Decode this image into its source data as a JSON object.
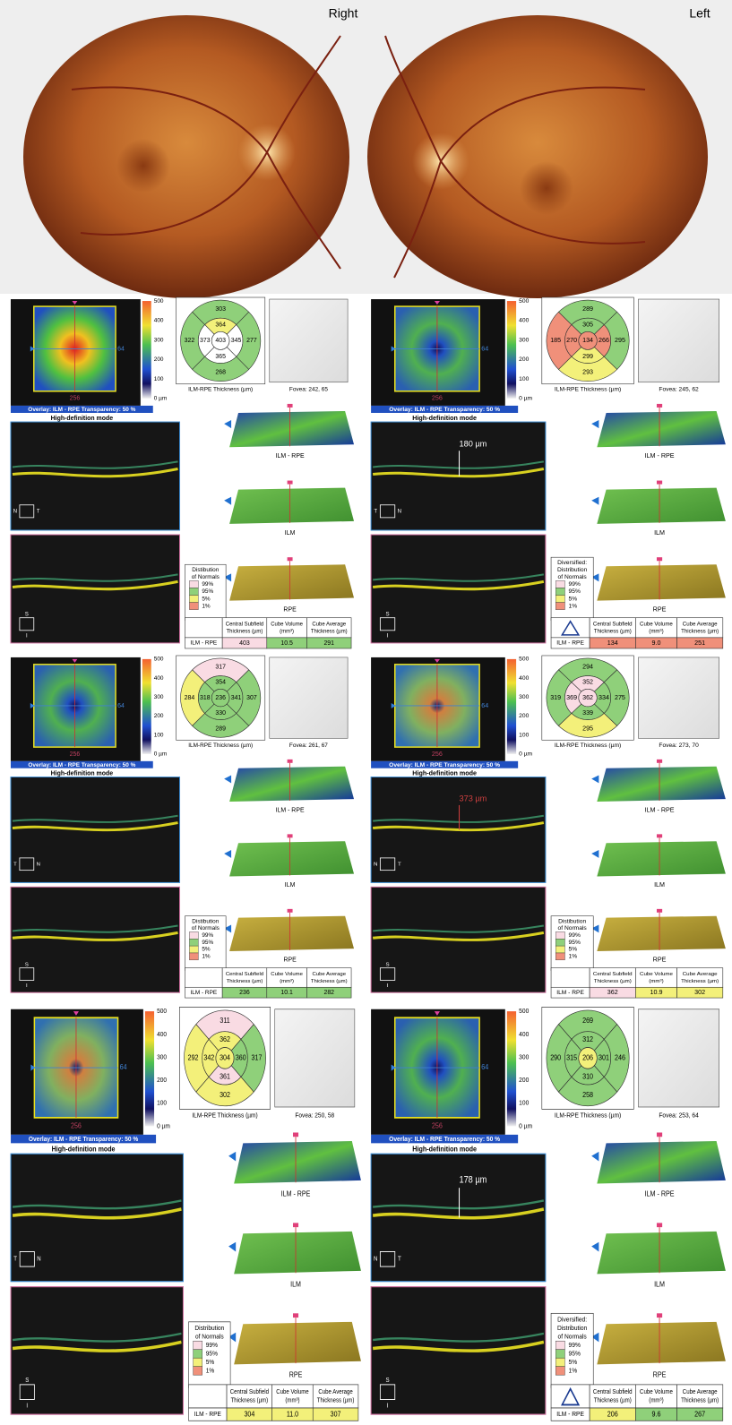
{
  "fundus": {
    "right_label": "Right",
    "left_label": "Left"
  },
  "labels": {
    "overlay": "Overlay: ILM - RPE  Transparency: 50 %",
    "hd_mode": "High-definition mode",
    "grid_caption": "ILM-RPE Thickness (µm)",
    "scale": [
      "500",
      "400",
      "300",
      "200",
      "100",
      "0 µm"
    ],
    "map_x": "64",
    "map_y": "256",
    "surface_1": "ILM - RPE",
    "surface_2": "ILM",
    "surface_3": "RPE",
    "legend_items": [
      "99%",
      "95%",
      "5%",
      "1%"
    ],
    "table_headers": [
      [
        "Central Subfield",
        "Thickness (µm)"
      ],
      [
        "Cube Volume",
        "(mm³)"
      ],
      [
        "Cube Average",
        "Thickness (µm)"
      ]
    ],
    "table_row": "ILM - RPE"
  },
  "panels": [
    {
      "grid": [
        "303",
        "364",
        "322",
        "373",
        "403",
        "345",
        "277",
        "365",
        "268"
      ],
      "grid_colors": [
        "#8fd07a",
        "#f3f07a",
        "#8fd07a",
        "#ffffff",
        "#ffffff",
        "#ffffff",
        "#8fd07a",
        "#ffffff",
        "#8fd07a"
      ],
      "fovea": "Fovea: 242, 65",
      "legend_title": [
        "Distibution",
        "of Normals"
      ],
      "table": [
        "403",
        "10.5",
        "291"
      ],
      "table_colors": [
        "#f9dbe3",
        "#8fd07a",
        "#8fd07a"
      ],
      "bscan_a": [
        "N",
        "T"
      ],
      "bscan_b": [
        "S",
        "I"
      ]
    },
    {
      "grid": [
        "289",
        "305",
        "185",
        "270",
        "134",
        "266",
        "295",
        "299",
        "293"
      ],
      "grid_colors": [
        "#8fd07a",
        "#8fd07a",
        "#f0907a",
        "#f0907a",
        "#f0907a",
        "#f0907a",
        "#8fd07a",
        "#f3f07a",
        "#f3f07a"
      ],
      "fovea": "Fovea: 245, 62",
      "legend_title": [
        "Diversified:",
        "Distribution",
        "of Normals"
      ],
      "table": [
        "134",
        "9.0",
        "251"
      ],
      "table_colors": [
        "#f0907a",
        "#f0907a",
        "#f0907a"
      ],
      "annotation": "180 µm",
      "warning": true,
      "bscan_a": [
        "T",
        "N"
      ],
      "bscan_b": [
        "S",
        "I"
      ]
    },
    {
      "grid": [
        "317",
        "354",
        "284",
        "318",
        "236",
        "341",
        "307",
        "330",
        "289"
      ],
      "grid_colors": [
        "#f9dbe3",
        "#8fd07a",
        "#f3f07a",
        "#8fd07a",
        "#8fd07a",
        "#8fd07a",
        "#8fd07a",
        "#8fd07a",
        "#8fd07a"
      ],
      "fovea": "Fovea: 261, 67",
      "legend_title": [
        "Distibution",
        "of Normals"
      ],
      "table": [
        "236",
        "10.1",
        "282"
      ],
      "table_colors": [
        "#8fd07a",
        "#8fd07a",
        "#8fd07a"
      ],
      "bscan_a": [
        "T",
        "N"
      ],
      "bscan_b": [
        "S",
        "I"
      ]
    },
    {
      "grid": [
        "294",
        "352",
        "319",
        "369",
        "362",
        "334",
        "275",
        "339",
        "295"
      ],
      "grid_colors": [
        "#8fd07a",
        "#f9dbe3",
        "#8fd07a",
        "#f9dbe3",
        "#f9dbe3",
        "#8fd07a",
        "#8fd07a",
        "#8fd07a",
        "#f3f07a"
      ],
      "fovea": "Fovea: 273, 70",
      "legend_title": [
        "Distibution",
        "of Normals"
      ],
      "table": [
        "362",
        "10.9",
        "302"
      ],
      "table_colors": [
        "#f9dbe3",
        "#f3f07a",
        "#f3f07a"
      ],
      "annotation": "373 µm",
      "bscan_a": [
        "N",
        "T"
      ],
      "bscan_b": [
        "S",
        "I"
      ]
    },
    {
      "grid": [
        "311",
        "362",
        "292",
        "342",
        "304",
        "360",
        "317",
        "361",
        "302"
      ],
      "grid_colors": [
        "#f9dbe3",
        "#f3f07a",
        "#f3f07a",
        "#f3f07a",
        "#f3f07a",
        "#8fd07a",
        "#8fd07a",
        "#f9dbe3",
        "#f3f07a"
      ],
      "fovea": "Fovea: 250, 58",
      "legend_title": [
        "Distribution",
        "of Normals"
      ],
      "table": [
        "304",
        "11.0",
        "307"
      ],
      "table_colors": [
        "#f3f07a",
        "#f3f07a",
        "#f3f07a"
      ],
      "bscan_a": [
        "T",
        "N"
      ],
      "bscan_b": [
        "S",
        "I"
      ]
    },
    {
      "grid": [
        "269",
        "312",
        "290",
        "315",
        "206",
        "301",
        "246",
        "310",
        "258"
      ],
      "grid_colors": [
        "#8fd07a",
        "#8fd07a",
        "#8fd07a",
        "#8fd07a",
        "#f3f07a",
        "#8fd07a",
        "#8fd07a",
        "#8fd07a",
        "#8fd07a"
      ],
      "fovea": "Fovea: 253, 64",
      "legend_title": [
        "Diversified:",
        "Distribution",
        "of Normals"
      ],
      "table": [
        "206",
        "9.6",
        "267"
      ],
      "table_colors": [
        "#f3f07a",
        "#8fd07a",
        "#8fd07a"
      ],
      "annotation": "178 µm",
      "warning": true,
      "bscan_a": [
        "N",
        "T"
      ],
      "bscan_b": [
        "S",
        "I"
      ]
    }
  ]
}
